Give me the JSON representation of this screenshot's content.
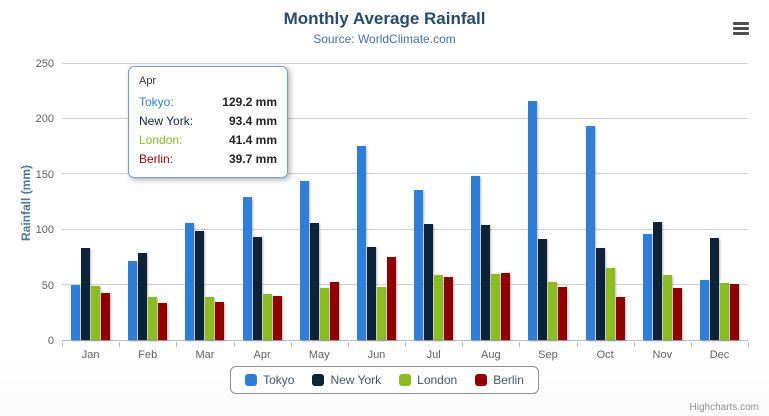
{
  "chart": {
    "title": "Monthly Average Rainfall",
    "subtitle": "Source: WorldClimate.com",
    "y_axis_label": "Rainfall (mm)",
    "credits": "Highcharts.com"
  },
  "chart_data": {
    "type": "bar",
    "title": "Monthly Average Rainfall",
    "subtitle": "Source: WorldClimate.com",
    "xlabel": "",
    "ylabel": "Rainfall (mm)",
    "ylim": [
      0,
      250
    ],
    "y_ticks": [
      0,
      50,
      100,
      150,
      200,
      250
    ],
    "grid": "horizontal",
    "legend_position": "bottom",
    "categories": [
      "Jan",
      "Feb",
      "Mar",
      "Apr",
      "May",
      "Jun",
      "Jul",
      "Aug",
      "Sep",
      "Oct",
      "Nov",
      "Dec"
    ],
    "series": [
      {
        "name": "Tokyo",
        "color": "#2f7ed8",
        "values": [
          49.9,
          71.5,
          106.4,
          129.2,
          144.0,
          176.0,
          135.6,
          148.5,
          216.4,
          194.1,
          95.6,
          54.4
        ]
      },
      {
        "name": "New York",
        "color": "#0d233a",
        "values": [
          83.6,
          78.8,
          98.5,
          93.4,
          106.0,
          84.5,
          105.0,
          104.3,
          91.2,
          83.5,
          106.6,
          92.3
        ]
      },
      {
        "name": "London",
        "color": "#8bbc21",
        "values": [
          48.9,
          38.8,
          39.3,
          41.4,
          47.0,
          48.3,
          59.0,
          59.6,
          52.4,
          65.2,
          59.3,
          51.2
        ]
      },
      {
        "name": "Berlin",
        "color": "#910000",
        "values": [
          42.4,
          33.2,
          34.5,
          39.7,
          52.6,
          75.5,
          57.4,
          60.4,
          47.6,
          39.1,
          46.8,
          51.1
        ]
      }
    ]
  },
  "tooltip": {
    "header": "Apr",
    "border_color": "#6aa3d9",
    "rows": [
      {
        "name": "Tokyo:",
        "value": "129.2 mm",
        "color": "#2f7ed8"
      },
      {
        "name": "New York:",
        "value": "93.4 mm",
        "color": "#0d233a"
      },
      {
        "name": "London:",
        "value": "41.4 mm",
        "color": "#8bbc21"
      },
      {
        "name": "Berlin:",
        "value": "39.7 mm",
        "color": "#910000"
      }
    ]
  },
  "legend": {
    "items": [
      {
        "label": "Tokyo",
        "color": "#2f7ed8"
      },
      {
        "label": "New York",
        "color": "#0d233a"
      },
      {
        "label": "London",
        "color": "#8bbc21"
      },
      {
        "label": "Berlin",
        "color": "#910000"
      }
    ]
  }
}
